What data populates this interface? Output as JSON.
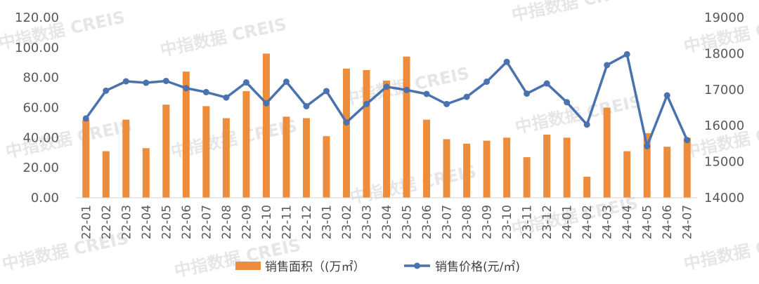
{
  "chart_data": {
    "type": "bar+line",
    "categories": [
      "22-01",
      "22-02",
      "22-03",
      "22-04",
      "22-05",
      "22-06",
      "22-07",
      "22-08",
      "22-09",
      "22-10",
      "22-11",
      "22-12",
      "23-01",
      "23-02",
      "23-03",
      "23-04",
      "23-05",
      "23-06",
      "23-07",
      "23-08",
      "23-09",
      "23-10",
      "23-11",
      "23-12",
      "24-01",
      "24-02",
      "24-03",
      "24-04",
      "24-05",
      "24-06",
      "24-07"
    ],
    "series": [
      {
        "name": "销售面积（(万㎡）",
        "type": "bar",
        "axis": "left",
        "color": "#ED8D3B",
        "values": [
          52,
          31,
          52,
          33,
          62,
          84,
          61,
          53,
          71,
          96,
          54,
          53,
          41,
          86,
          85,
          78,
          94,
          52,
          39,
          36,
          38,
          40,
          27,
          42,
          40,
          14,
          60,
          31,
          43,
          34,
          40
        ]
      },
      {
        "name": "销售价格(元/㎡)",
        "type": "line",
        "axis": "right",
        "color": "#4A72AE",
        "values": [
          16200,
          16970,
          17230,
          17190,
          17240,
          17040,
          16930,
          16780,
          17200,
          16620,
          17220,
          16540,
          16960,
          16090,
          16600,
          17080,
          16990,
          16880,
          16600,
          16800,
          17220,
          17770,
          16890,
          17170,
          16650,
          16030,
          17680,
          17980,
          15430,
          16840,
          15600
        ]
      }
    ],
    "y_left": {
      "min": 0,
      "max": 120,
      "ticks": [
        "0.00",
        "20.00",
        "40.00",
        "60.00",
        "80.00",
        "100.00",
        "120.00"
      ]
    },
    "y_right": {
      "min": 14000,
      "max": 19000,
      "ticks": [
        "14000",
        "15000",
        "16000",
        "17000",
        "18000",
        "19000"
      ]
    },
    "legend_position": "bottom",
    "grid": false,
    "watermark": "中指数据 CREIS"
  }
}
